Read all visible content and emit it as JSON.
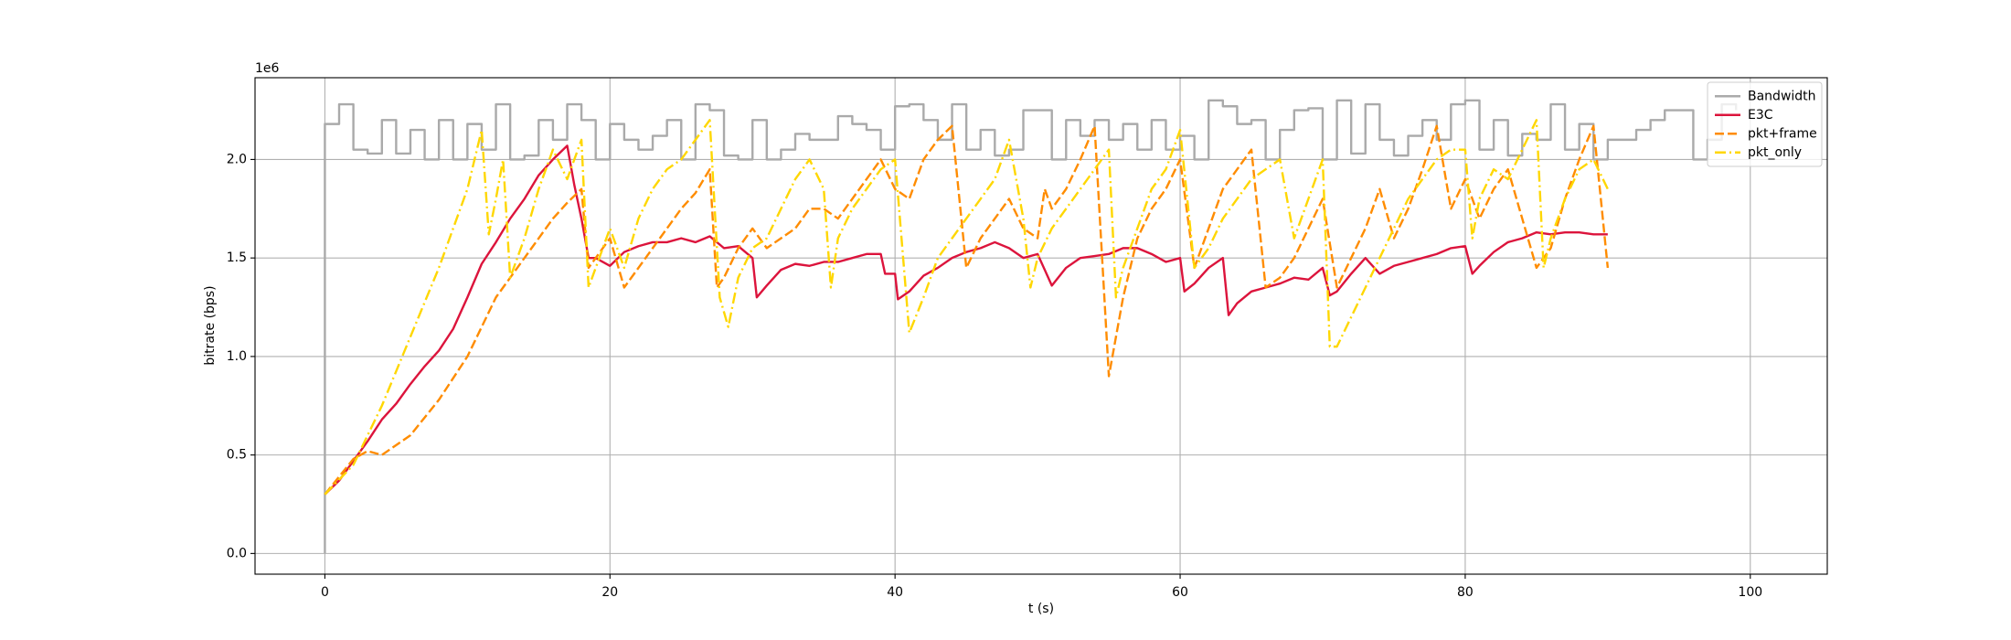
{
  "chart_data": {
    "type": "line",
    "xlabel": "t (s)",
    "ylabel": "bitrate (bps)",
    "y_offset_text": "1e6",
    "xlim": [
      -4.9,
      105.4
    ],
    "ylim": [
      -105000,
      2415000
    ],
    "xticks": [
      0,
      20,
      40,
      60,
      80,
      100
    ],
    "yticks": [
      {
        "value": 0,
        "label": "0.0"
      },
      {
        "value": 500000,
        "label": "0.5"
      },
      {
        "value": 1000000,
        "label": "1.0"
      },
      {
        "value": 1500000,
        "label": "1.5"
      },
      {
        "value": 2000000,
        "label": "2.0"
      }
    ],
    "grid": true,
    "legend": "upper right",
    "series": [
      {
        "name": "Bandwidth",
        "color": "#aaaaaa",
        "linestyle": "solid",
        "step": true,
        "x": [
          0,
          0,
          1,
          2,
          3,
          4,
          5,
          6,
          7,
          8,
          9,
          10,
          11,
          12,
          13,
          14,
          15,
          16,
          17,
          18,
          19,
          20,
          21,
          22,
          23,
          24,
          25,
          26,
          27,
          28,
          29,
          30,
          31,
          32,
          33,
          34,
          35,
          36,
          37,
          38,
          39,
          40,
          41,
          42,
          43,
          44,
          45,
          46,
          47,
          48,
          49,
          50,
          51,
          52,
          53,
          54,
          55,
          56,
          57,
          58,
          59,
          60,
          61,
          62,
          63,
          64,
          65,
          66,
          67,
          68,
          69,
          70,
          71,
          72,
          73,
          74,
          75,
          76,
          77,
          78,
          79,
          80,
          81,
          82,
          83,
          84,
          85,
          86,
          87,
          88,
          89,
          90,
          91,
          92,
          93,
          94,
          95,
          96,
          97,
          98,
          99
        ],
        "values": [
          0,
          2180000.0,
          2280000.0,
          2050000.0,
          2030000.0,
          2200000.0,
          2030000.0,
          2150000.0,
          2000000.0,
          2200000.0,
          2000000.0,
          2180000.0,
          2050000.0,
          2280000.0,
          2000000.0,
          2020000.0,
          2200000.0,
          2100000.0,
          2280000.0,
          2200000.0,
          2000000.0,
          2180000.0,
          2100000.0,
          2050000.0,
          2120000.0,
          2200000.0,
          2000000.0,
          2280000.0,
          2250000.0,
          2020000.0,
          2000000.0,
          2200000.0,
          2000000.0,
          2050000.0,
          2130000.0,
          2100000.0,
          2100000.0,
          2220000.0,
          2180000.0,
          2150000.0,
          2050000.0,
          2270000.0,
          2280000.0,
          2200000.0,
          2100000.0,
          2280000.0,
          2050000.0,
          2150000.0,
          2020000.0,
          2050000.0,
          2250000.0,
          2250000.0,
          2000000.0,
          2200000.0,
          2120000.0,
          2200000.0,
          2100000.0,
          2180000.0,
          2050000.0,
          2200000.0,
          2050000.0,
          2120000.0,
          2000000.0,
          2300000.0,
          2270000.0,
          2180000.0,
          2200000.0,
          2000000.0,
          2150000.0,
          2250000.0,
          2260000.0,
          2000000.0,
          2300000.0,
          2030000.0,
          2280000.0,
          2100000.0,
          2020000.0,
          2120000.0,
          2200000.0,
          2100000.0,
          2280000.0,
          2300000.0,
          2050000.0,
          2200000.0,
          2020000.0,
          2130000.0,
          2100000.0,
          2280000.0,
          2050000.0,
          2180000.0,
          2000000.0,
          2100000.0,
          2100000.0,
          2150000.0,
          2200000.0,
          2250000.0,
          2250000.0,
          2000000.0,
          2100000.0,
          2280000.0,
          2250000.0
        ]
      },
      {
        "name": "E3C",
        "color": "#dc143c",
        "linestyle": "solid",
        "x": [
          0,
          1,
          2,
          3,
          4,
          5,
          6,
          7,
          8,
          9,
          10,
          11,
          12,
          13,
          14,
          15,
          16,
          17,
          17.5,
          18,
          18.5,
          19,
          20,
          21,
          22,
          23,
          24,
          25,
          26,
          27,
          28,
          29,
          30,
          30.3,
          31,
          32,
          33,
          34,
          35,
          36,
          37,
          38,
          39,
          39.3,
          40,
          40.2,
          41,
          42,
          43,
          44,
          45,
          46,
          47,
          48,
          49,
          50,
          51,
          52,
          53,
          54,
          55,
          56,
          57,
          58,
          59,
          60,
          60.3,
          61,
          62,
          63,
          63.4,
          64,
          65,
          66,
          67,
          68,
          69,
          70,
          70.5,
          71,
          72,
          73,
          74,
          75,
          76,
          77,
          78,
          79,
          80,
          80.5,
          81,
          82,
          83,
          84,
          85,
          86,
          87,
          88,
          89,
          90
        ],
        "values": [
          300000.0,
          370000.0,
          470000.0,
          570000.0,
          680000.0,
          760000.0,
          860000.0,
          950000.0,
          1030000.0,
          1140000.0,
          1300000.0,
          1470000.0,
          1580000.0,
          1700000.0,
          1800000.0,
          1920000.0,
          2000000.0,
          2070000.0,
          1870000.0,
          1700000.0,
          1500000.0,
          1500000.0,
          1460000.0,
          1530000.0,
          1560000.0,
          1580000.0,
          1580000.0,
          1600000.0,
          1580000.0,
          1610000.0,
          1550000.0,
          1560000.0,
          1500000.0,
          1300000.0,
          1360000.0,
          1440000.0,
          1470000.0,
          1460000.0,
          1480000.0,
          1480000.0,
          1500000.0,
          1520000.0,
          1520000.0,
          1420000.0,
          1420000.0,
          1290000.0,
          1330000.0,
          1410000.0,
          1450000.0,
          1500000.0,
          1530000.0,
          1550000.0,
          1580000.0,
          1550000.0,
          1500000.0,
          1520000.0,
          1360000.0,
          1450000.0,
          1500000.0,
          1510000.0,
          1520000.0,
          1550000.0,
          1550000.0,
          1520000.0,
          1480000.0,
          1500000.0,
          1330000.0,
          1370000.0,
          1450000.0,
          1500000.0,
          1210000.0,
          1270000.0,
          1330000.0,
          1350000.0,
          1370000.0,
          1400000.0,
          1390000.0,
          1450000.0,
          1310000.0,
          1330000.0,
          1420000.0,
          1500000.0,
          1420000.0,
          1460000.0,
          1480000.0,
          1500000.0,
          1520000.0,
          1550000.0,
          1560000.0,
          1420000.0,
          1460000.0,
          1530000.0,
          1580000.0,
          1600000.0,
          1630000.0,
          1620000.0,
          1630000.0,
          1630000.0,
          1620000.0,
          1620000.0
        ]
      },
      {
        "name": "pkt+frame",
        "color": "#ff8c00",
        "linestyle": "dashed",
        "x": [
          0,
          2,
          3,
          4,
          5,
          6,
          8,
          10,
          12,
          14,
          16,
          17,
          18,
          18.5,
          19,
          20,
          21,
          22,
          23,
          24,
          25,
          26,
          27,
          27.5,
          28,
          29,
          30,
          31,
          32,
          33,
          34,
          35,
          36,
          37,
          38,
          39,
          40,
          41,
          42,
          43,
          44,
          45,
          46,
          47,
          48,
          49,
          50,
          50.5,
          51,
          52,
          53,
          54,
          55,
          56,
          57,
          58,
          59,
          60,
          61,
          62,
          63,
          64,
          65,
          66,
          67,
          68,
          69,
          70,
          71,
          72,
          73,
          74,
          75,
          76,
          77,
          78,
          79,
          80,
          81,
          82,
          83,
          84,
          85,
          86,
          87,
          88,
          89,
          90
        ],
        "values": [
          300000.0,
          480000.0,
          520000.0,
          500000.0,
          550000.0,
          600000.0,
          780000.0,
          1000000.0,
          1300000.0,
          1500000.0,
          1700000.0,
          1780000.0,
          1850000.0,
          1450000.0,
          1500000.0,
          1600000.0,
          1350000.0,
          1450000.0,
          1550000.0,
          1650000.0,
          1750000.0,
          1830000.0,
          1950000.0,
          1350000.0,
          1400000.0,
          1550000.0,
          1650000.0,
          1550000.0,
          1600000.0,
          1650000.0,
          1750000.0,
          1750000.0,
          1700000.0,
          1800000.0,
          1900000.0,
          2000000.0,
          1850000.0,
          1800000.0,
          2000000.0,
          2100000.0,
          2170000.0,
          1450000.0,
          1600000.0,
          1700000.0,
          1800000.0,
          1650000.0,
          1600000.0,
          1850000.0,
          1750000.0,
          1850000.0,
          2000000.0,
          2170000.0,
          900000.0,
          1300000.0,
          1600000.0,
          1750000.0,
          1850000.0,
          2000000.0,
          1450000.0,
          1650000.0,
          1850000.0,
          1950000.0,
          2050000.0,
          1350000.0,
          1400000.0,
          1500000.0,
          1650000.0,
          1800000.0,
          1350000.0,
          1500000.0,
          1650000.0,
          1850000.0,
          1600000.0,
          1750000.0,
          1950000.0,
          2170000.0,
          1750000.0,
          1900000.0,
          1700000.0,
          1850000.0,
          1950000.0,
          1700000.0,
          1450000.0,
          1550000.0,
          1800000.0,
          2000000.0,
          2170000.0,
          1450000.0
        ]
      },
      {
        "name": "pkt_only",
        "color": "#ffd700",
        "linestyle": "dashdot",
        "x": [
          0,
          2,
          4,
          6,
          8,
          10,
          11,
          11.5,
          12,
          12.5,
          13,
          14,
          15,
          16,
          17,
          18,
          18.5,
          19,
          20,
          21,
          22,
          23,
          24,
          25,
          26,
          27,
          27.7,
          28.3,
          29,
          30,
          31,
          32,
          33,
          34,
          35,
          35.5,
          36,
          37,
          38,
          39,
          40,
          41,
          42,
          43,
          44,
          45,
          46,
          47,
          48,
          49,
          49.5,
          50,
          51,
          52,
          53,
          54,
          55,
          55.5,
          56,
          57,
          58,
          59,
          60,
          61,
          62,
          63,
          64,
          65,
          66,
          67,
          68,
          69,
          70,
          70.5,
          71,
          72,
          73,
          74,
          75,
          76,
          77,
          78,
          79,
          80,
          80.5,
          81,
          82,
          83,
          84,
          85,
          85.5,
          86,
          87,
          88,
          89,
          90
        ],
        "values": [
          300000.0,
          450000.0,
          750000.0,
          1100000.0,
          1450000.0,
          1850000.0,
          2150000.0,
          1620000.0,
          1800000.0,
          2000000.0,
          1400000.0,
          1600000.0,
          1850000.0,
          2050000.0,
          1900000.0,
          2100000.0,
          1350000.0,
          1450000.0,
          1650000.0,
          1450000.0,
          1700000.0,
          1850000.0,
          1950000.0,
          2000000.0,
          2100000.0,
          2200000.0,
          1300000.0,
          1150000.0,
          1400000.0,
          1550000.0,
          1600000.0,
          1750000.0,
          1900000.0,
          2000000.0,
          1850000.0,
          1350000.0,
          1600000.0,
          1750000.0,
          1850000.0,
          1950000.0,
          2000000.0,
          1120000.0,
          1300000.0,
          1500000.0,
          1600000.0,
          1700000.0,
          1800000.0,
          1900000.0,
          2100000.0,
          1700000.0,
          1350000.0,
          1500000.0,
          1650000.0,
          1750000.0,
          1850000.0,
          1950000.0,
          2050000.0,
          1300000.0,
          1450000.0,
          1650000.0,
          1850000.0,
          1950000.0,
          2150000.0,
          1450000.0,
          1550000.0,
          1700000.0,
          1800000.0,
          1900000.0,
          1950000.0,
          2000000.0,
          1600000.0,
          1800000.0,
          2000000.0,
          1050000.0,
          1050000.0,
          1200000.0,
          1350000.0,
          1500000.0,
          1650000.0,
          1800000.0,
          1900000.0,
          2000000.0,
          2050000.0,
          2050000.0,
          1600000.0,
          1800000.0,
          1950000.0,
          1900000.0,
          2050000.0,
          2200000.0,
          1450000.0,
          1600000.0,
          1800000.0,
          1950000.0,
          2000000.0,
          1850000.0
        ]
      }
    ]
  }
}
